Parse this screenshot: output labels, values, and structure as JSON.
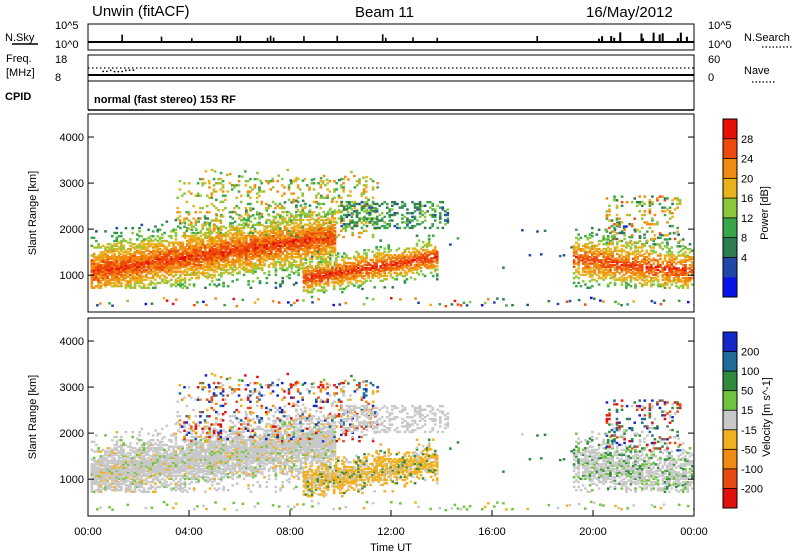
{
  "header": {
    "station": "Unwin (fitACF)",
    "beam": "Beam 11",
    "date": "16/May/2012"
  },
  "top_panels": {
    "nsky_label": "N.Sky",
    "nsky_top": "10^5",
    "nsky_bottom": "10^0",
    "nsearch_label": "N.Search",
    "nsearch_top": "10^5",
    "nsearch_bottom": "10^0",
    "freq_label": "Freq.",
    "freq_unit": "[MHz]",
    "freq_top": "18",
    "freq_bottom": "8",
    "nave_label": "Nave",
    "nave_top": "60",
    "nave_bottom": "0",
    "cpid_label": "CPID",
    "cpid_text": "normal (fast stereo) 153 RF"
  },
  "chart_data": [
    {
      "type": "heatmap",
      "title": "",
      "ylabel": "Slant Range [km]",
      "xlabel": "",
      "ylim": [
        200,
        4500
      ],
      "yticks": [
        "1000",
        "2000",
        "3000",
        "4000"
      ],
      "colorbar": {
        "label": "Power [dB]",
        "ticks": [
          "4",
          "8",
          "12",
          "16",
          "20",
          "24",
          "28"
        ],
        "colors": [
          "#0a14e6",
          "#1f48a8",
          "#2e7d4f",
          "#3aa64a",
          "#8bc83c",
          "#e8b21d",
          "#f08a10",
          "#ee4a0c",
          "#e60f06"
        ]
      }
    },
    {
      "type": "heatmap",
      "title": "",
      "ylabel": "Slant Range [km]",
      "xlabel": "Time UT",
      "ylim": [
        200,
        4500
      ],
      "yticks": [
        "1000",
        "2000",
        "3000",
        "4000"
      ],
      "xticks": [
        "00:00",
        "04:00",
        "08:00",
        "12:00",
        "16:00",
        "20:00",
        "00:00"
      ],
      "colorbar": {
        "label": "Velocity [m s^-1]",
        "ticks": [
          "200",
          "100",
          "50",
          "15",
          "-15",
          "-50",
          "-100",
          "-200"
        ],
        "colors": [
          "#1428c8",
          "#1f6b9a",
          "#2f8a3e",
          "#6ec43a",
          "#c8c8c8",
          "#f0b020",
          "#f08a10",
          "#e94a10",
          "#e01010"
        ]
      }
    }
  ]
}
